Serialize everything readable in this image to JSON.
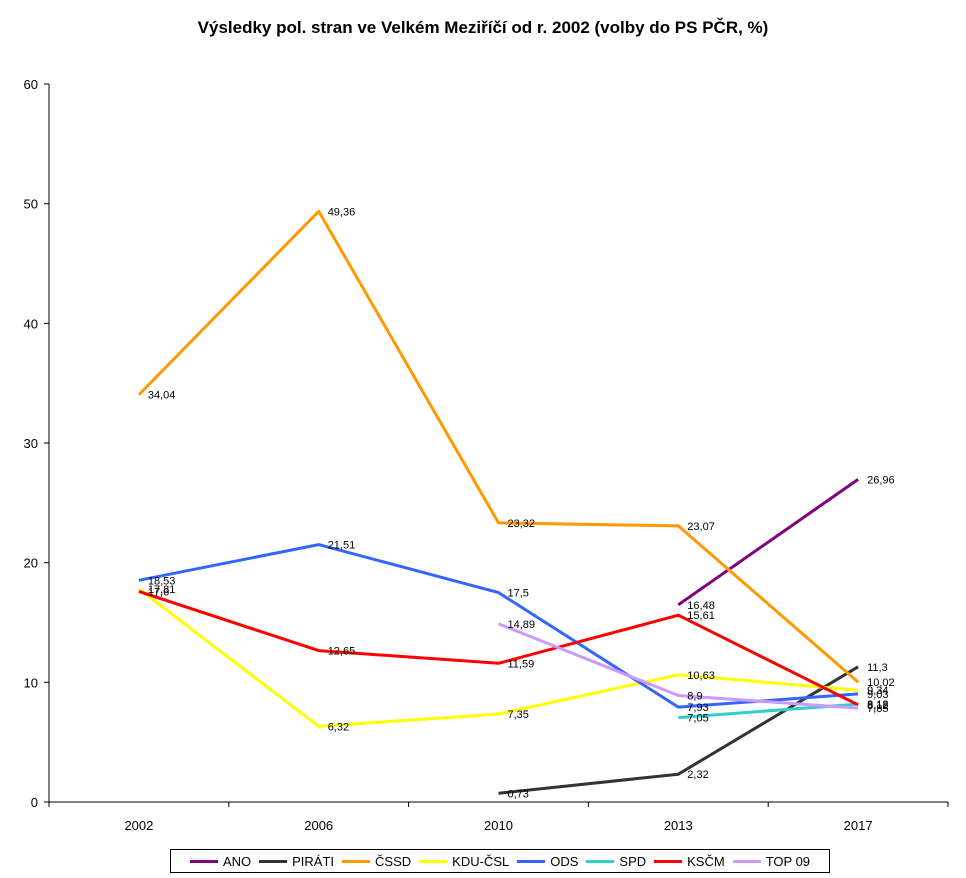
{
  "chart_data": {
    "type": "line",
    "title": "Výsledky pol. stran ve Velkém Meziříčí od r. 2002 (volby do PS PČR, %)",
    "xlabel": "",
    "ylabel": "",
    "categories": [
      "2002",
      "2006",
      "2010",
      "2013",
      "2017"
    ],
    "ylim": [
      0,
      60
    ],
    "yticks": [
      0,
      10,
      20,
      30,
      40,
      50,
      60
    ],
    "grid": false,
    "legend_position": "bottom",
    "series": [
      {
        "name": "ANO",
        "color": "#800080",
        "values": [
          null,
          null,
          null,
          16.48,
          26.96
        ],
        "labels": [
          null,
          null,
          null,
          "16,48",
          "26,96"
        ]
      },
      {
        "name": "PIRÁTI",
        "color": "#333333",
        "values": [
          null,
          null,
          0.73,
          2.32,
          11.3
        ],
        "labels": [
          null,
          null,
          "0,73",
          "2,32",
          "11,3"
        ]
      },
      {
        "name": "ČSSD",
        "color": "#FF9900",
        "values": [
          34.04,
          49.36,
          23.32,
          23.07,
          10.02
        ],
        "labels": [
          "34,04",
          "49,36",
          "23,32",
          "23,07",
          "10,02"
        ]
      },
      {
        "name": "KDU-ČSL",
        "color": "#FFFF00",
        "values": [
          17.81,
          6.32,
          7.35,
          10.63,
          9.34
        ],
        "labels": [
          "17,81",
          "6,32",
          "7,35",
          "10,63",
          "9,34"
        ]
      },
      {
        "name": "ODS",
        "color": "#3366FF",
        "values": [
          18.53,
          21.51,
          17.5,
          7.93,
          9.03
        ],
        "labels": [
          "18,53",
          "21,51",
          "17,5",
          "7,93",
          "9,03"
        ]
      },
      {
        "name": "SPD",
        "color": "#33CCCC",
        "values": [
          null,
          null,
          null,
          7.05,
          8.18
        ],
        "labels": [
          null,
          null,
          null,
          "7,05",
          "8,18"
        ]
      },
      {
        "name": "KSČM",
        "color": "#FF0000",
        "values": [
          17.6,
          12.65,
          11.59,
          15.61,
          8.12
        ],
        "labels": [
          "17,6",
          "12,65",
          "11,59",
          "15,61",
          "8,12"
        ]
      },
      {
        "name": "TOP 09",
        "color": "#CC99FF",
        "values": [
          null,
          null,
          14.89,
          8.9,
          7.85
        ],
        "labels": [
          null,
          null,
          "14,89",
          "8,9",
          "7,85"
        ]
      }
    ]
  }
}
